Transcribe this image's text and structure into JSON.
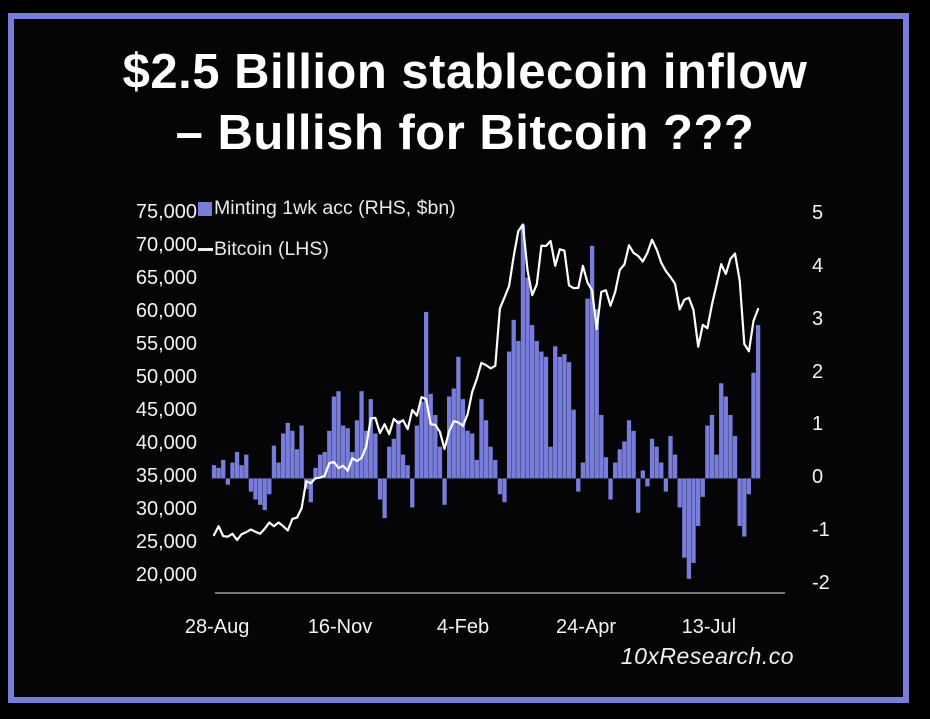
{
  "title": {
    "line1": "$2.5 Billion stablecoin inflow",
    "line2": "– Bullish for Bitcoin ???"
  },
  "watermark": "10xResearch.co",
  "legend": [
    {
      "label": "Minting 1wk acc (RHS, $bn)",
      "marker": "square",
      "color": "#777dd9"
    },
    {
      "label": "Bitcoin (LHS)",
      "marker": "dash",
      "color": "#eeeeee"
    }
  ],
  "colors": {
    "background": "#050507",
    "frame_border": "#777dd9",
    "bars": "#777dd9",
    "line": "#ffffff",
    "text": "#f3f3f3",
    "axis_line": "#9b9b9b"
  },
  "chart_data": {
    "type": "bar+line",
    "title": "$2.5 Billion stablecoin inflow – Bullish for Bitcoin ???",
    "legend_position": "top-left",
    "grid": false,
    "x_axis": {
      "tick_labels": [
        "28-Aug",
        "16-Nov",
        "4-Feb",
        "24-Apr",
        "13-Jul"
      ],
      "tick_day_offsets": [
        2,
        82,
        162,
        242,
        322
      ],
      "day0_date": "2023-08-26",
      "sample_interval_days": 3
    },
    "left_axis": {
      "series": "Bitcoin (LHS)",
      "ticks": [
        "75,000",
        "70,000",
        "65,000",
        "60,000",
        "55,000",
        "50,000",
        "45,000",
        "40,000",
        "35,000",
        "30,000",
        "25,000",
        "20,000"
      ],
      "range": [
        20000,
        75000
      ]
    },
    "right_axis": {
      "series": "Minting 1wk acc (RHS, $bn)",
      "ticks": [
        "5",
        "4",
        "3",
        "2",
        "1",
        "0",
        "-1",
        "-2"
      ],
      "range": [
        -2,
        5
      ]
    },
    "series": [
      {
        "name": "Minting 1wk acc (RHS, $bn)",
        "type": "bar",
        "axis": "right",
        "unit": "$bn",
        "color": "#777dd9",
        "values": [
          0.25,
          0.2,
          0.35,
          -0.12,
          0.3,
          0.5,
          0.25,
          0.45,
          -0.25,
          -0.4,
          -0.5,
          -0.6,
          -0.3,
          0.62,
          0.3,
          0.85,
          1.05,
          0.9,
          0.55,
          1.0,
          -0.2,
          -0.45,
          0.2,
          0.45,
          0.5,
          0.9,
          1.55,
          1.65,
          1.0,
          0.95,
          0.5,
          1.1,
          1.65,
          0.9,
          1.5,
          0.85,
          -0.4,
          -0.75,
          0.6,
          0.75,
          1.1,
          0.45,
          0.25,
          -0.55,
          1.0,
          1.45,
          3.15,
          1.6,
          1.2,
          0.6,
          -0.5,
          1.55,
          1.7,
          2.3,
          1.5,
          0.9,
          0.85,
          0.35,
          1.5,
          1.1,
          0.6,
          0.35,
          -0.3,
          -0.45,
          2.4,
          3.0,
          2.6,
          4.8,
          3.8,
          2.9,
          2.6,
          2.4,
          2.3,
          0.6,
          2.5,
          2.3,
          2.35,
          2.2,
          1.3,
          -0.25,
          0.3,
          3.4,
          4.4,
          3.2,
          1.2,
          0.4,
          -0.4,
          0.3,
          0.55,
          0.7,
          1.1,
          0.9,
          -0.65,
          0.15,
          -0.15,
          0.75,
          0.6,
          0.3,
          -0.25,
          0.8,
          0.45,
          -0.55,
          -1.5,
          -1.9,
          -1.6,
          -0.9,
          -0.35,
          1.0,
          1.2,
          0.45,
          1.8,
          1.55,
          1.2,
          0.8,
          -0.9,
          -1.1,
          -0.3,
          2.0,
          2.9
        ]
      },
      {
        "name": "Bitcoin (LHS)",
        "type": "line",
        "axis": "left",
        "unit": "USD",
        "color": "#ffffff",
        "values": [
          26050,
          27400,
          25900,
          25800,
          26250,
          25300,
          26200,
          26500,
          26900,
          26550,
          26250,
          27000,
          27950,
          27400,
          27950,
          27400,
          26750,
          28500,
          28700,
          30100,
          34200,
          33900,
          34650,
          34750,
          35050,
          36950,
          37100,
          36200,
          36550,
          35800,
          37700,
          37250,
          37750,
          39450,
          43750,
          43800,
          41500,
          42850,
          41350,
          43650,
          43000,
          43450,
          42100,
          45000,
          44150,
          46950,
          46650,
          42850,
          42750,
          41700,
          39100,
          41800,
          43300,
          43100,
          42600,
          44350,
          47750,
          49700,
          52150,
          51800,
          51300,
          51700,
          60400,
          62050,
          63800,
          68300,
          72100,
          73100,
          66200,
          62400,
          64050,
          69900,
          69850,
          70600,
          66850,
          69350,
          69150,
          63900,
          63450,
          63500,
          66850,
          64300,
          63100,
          57250,
          62900,
          63150,
          60800,
          62900,
          66250,
          67050,
          69950,
          68800,
          68350,
          67500,
          68800,
          70800,
          69300,
          67300,
          66050,
          65150,
          64100,
          60250,
          61700,
          62000,
          60150,
          54600,
          57900,
          57400,
          61000,
          64000,
          67100,
          65600,
          67900,
          68700,
          64600,
          55000,
          53900,
          58500,
          60300
        ]
      }
    ]
  }
}
